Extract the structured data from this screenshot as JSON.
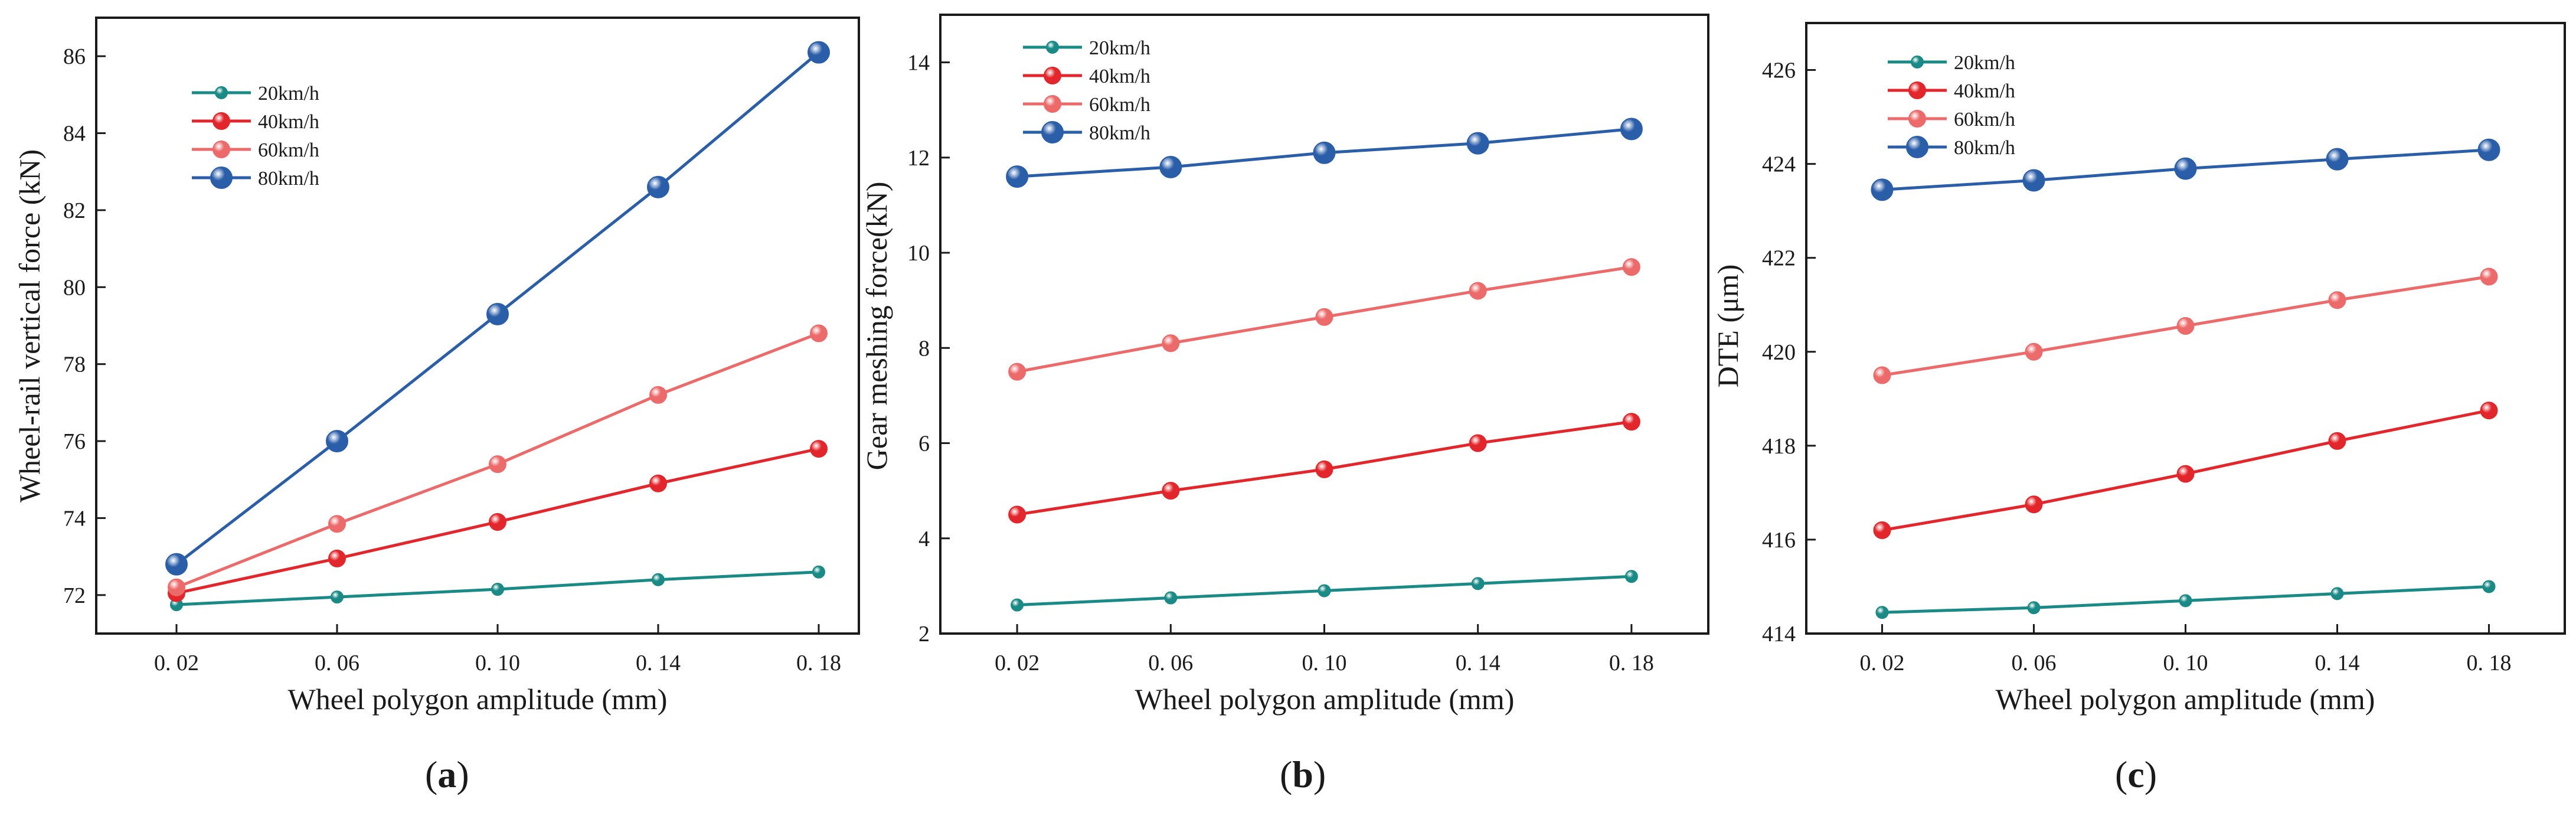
{
  "figure": {
    "panel_labels": [
      {
        "open": "(",
        "letter": "a",
        "close": ")"
      },
      {
        "open": "(",
        "letter": "b",
        "close": ")"
      },
      {
        "open": "(",
        "letter": "c",
        "close": ")"
      }
    ]
  },
  "chart_data": [
    {
      "type": "line",
      "title": "",
      "xlabel": "Wheel polygon amplitude (mm)",
      "ylabel": "Wheel-rail vertical force (kN)",
      "categories": [
        "0.02",
        "0.06",
        "0.10",
        "0.14",
        "0.18"
      ],
      "x": [
        0.02,
        0.06,
        0.1,
        0.14,
        0.18
      ],
      "x_tick_labels": [
        "0. 02",
        "0. 06",
        "0. 10",
        "0. 14",
        "0. 18"
      ],
      "xlim": [
        0.0,
        0.19
      ],
      "ylim": [
        71.0,
        87.0
      ],
      "y_ticks": [
        72,
        74,
        76,
        78,
        80,
        82,
        84,
        86
      ],
      "y_tick_labels": [
        "72",
        "74",
        "76",
        "78",
        "80",
        "82",
        "84",
        "86"
      ],
      "legend": "upper-left",
      "grid": false,
      "series": [
        {
          "name": "20km/h",
          "color": "#1a8a86",
          "marker_size": "small",
          "values": [
            71.75,
            71.95,
            72.15,
            72.4,
            72.6
          ]
        },
        {
          "name": "40km/h",
          "color": "#e2262b",
          "marker_size": "medium",
          "values": [
            72.05,
            72.95,
            73.9,
            74.9,
            75.8
          ]
        },
        {
          "name": "60km/h",
          "color": "#ec6a6a",
          "marker_size": "medium",
          "values": [
            72.2,
            73.85,
            75.4,
            77.2,
            78.8
          ]
        },
        {
          "name": "80km/h",
          "color": "#2b5ea9",
          "marker_size": "large",
          "values": [
            72.8,
            76.0,
            79.3,
            82.6,
            86.1
          ]
        }
      ]
    },
    {
      "type": "line",
      "title": "",
      "xlabel": "Wheel polygon amplitude (mm)",
      "ylabel": "Gear meshing force(kN)",
      "categories": [
        "0.02",
        "0.06",
        "0.10",
        "0.14",
        "0.18"
      ],
      "x": [
        0.02,
        0.06,
        0.1,
        0.14,
        0.18
      ],
      "x_tick_labels": [
        "0. 02",
        "0. 06",
        "0. 10",
        "0. 14",
        "0. 18"
      ],
      "xlim": [
        0.0,
        0.2
      ],
      "ylim": [
        2.0,
        15.0
      ],
      "y_ticks": [
        2,
        4,
        6,
        8,
        10,
        12,
        14
      ],
      "y_tick_labels": [
        "2",
        "4",
        "6",
        "8",
        "10",
        "12",
        "14"
      ],
      "legend": "upper-left",
      "grid": false,
      "series": [
        {
          "name": "20km/h",
          "color": "#1a8a86",
          "marker_size": "small",
          "values": [
            2.6,
            2.75,
            2.9,
            3.05,
            3.2
          ]
        },
        {
          "name": "40km/h",
          "color": "#e2262b",
          "marker_size": "medium",
          "values": [
            4.5,
            5.0,
            5.45,
            6.0,
            6.45
          ]
        },
        {
          "name": "60km/h",
          "color": "#ec6a6a",
          "marker_size": "medium",
          "values": [
            7.5,
            8.1,
            8.65,
            9.2,
            9.7
          ]
        },
        {
          "name": "80km/h",
          "color": "#2b5ea9",
          "marker_size": "large",
          "values": [
            11.6,
            11.8,
            12.1,
            12.3,
            12.6
          ]
        }
      ]
    },
    {
      "type": "line",
      "title": "",
      "xlabel": "Wheel polygon amplitude (mm)",
      "ylabel": "DTE (μm)",
      "categories": [
        "0.02",
        "0.06",
        "0.10",
        "0.14",
        "0.18"
      ],
      "x": [
        0.02,
        0.06,
        0.1,
        0.14,
        0.18
      ],
      "x_tick_labels": [
        "0. 02",
        "0. 06",
        "0. 10",
        "0. 14",
        "0. 18"
      ],
      "xlim": [
        0.0,
        0.2
      ],
      "ylim": [
        414.0,
        427.0
      ],
      "y_ticks": [
        414,
        416,
        418,
        420,
        422,
        424,
        426
      ],
      "y_tick_labels": [
        "414",
        "416",
        "418",
        "420",
        "422",
        "424",
        "426"
      ],
      "legend": "upper-left",
      "grid": false,
      "series": [
        {
          "name": "20km/h",
          "color": "#1a8a86",
          "marker_size": "small",
          "values": [
            414.45,
            414.55,
            414.7,
            414.85,
            415.0
          ]
        },
        {
          "name": "40km/h",
          "color": "#e2262b",
          "marker_size": "medium",
          "values": [
            416.2,
            416.75,
            417.4,
            418.1,
            418.75
          ]
        },
        {
          "name": "60km/h",
          "color": "#ec6a6a",
          "marker_size": "medium",
          "values": [
            419.5,
            420.0,
            420.55,
            421.1,
            421.6
          ]
        },
        {
          "name": "80km/h",
          "color": "#2b5ea9",
          "marker_size": "large",
          "values": [
            423.45,
            423.65,
            423.9,
            424.1,
            424.3
          ]
        }
      ]
    }
  ]
}
